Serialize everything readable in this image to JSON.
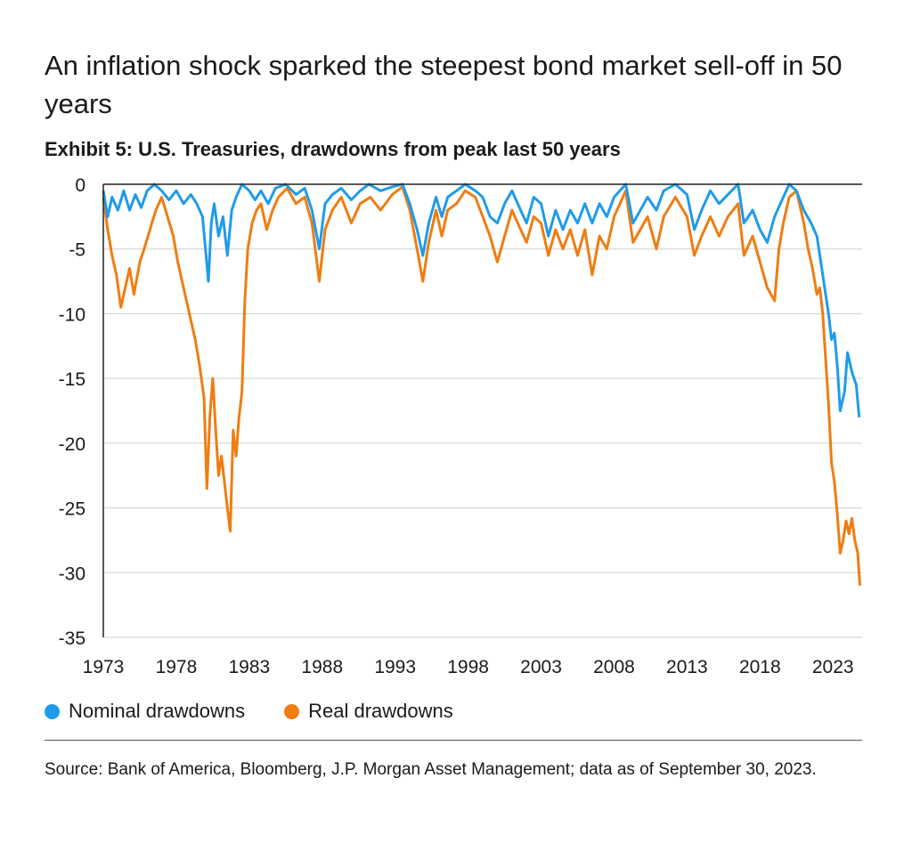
{
  "header": {
    "title": "An inflation shock sparked the steepest bond market sell-off in 50 years",
    "subtitle": "Exhibit 5: U.S. Treasuries, drawdowns from peak last 50 years"
  },
  "colors": {
    "nominal": "#1f9bea",
    "real": "#ef7d12",
    "grid": "#cfcfcf",
    "axis": "#222222"
  },
  "legend": [
    {
      "label": "Nominal drawdowns",
      "color": "#1f9bea"
    },
    {
      "label": "Real drawdowns",
      "color": "#ef7d12"
    }
  ],
  "footer": {
    "source": "Source: Bank of America, Bloomberg, J.P. Morgan Asset Management; data as of September 30, 2023."
  },
  "chart_data": {
    "type": "line",
    "title": "Exhibit 5: U.S. Treasuries, drawdowns from peak last 50 years",
    "xlabel": "",
    "ylabel": "",
    "xlim": [
      1973,
      2025
    ],
    "ylim": [
      -35,
      0
    ],
    "x_ticks": [
      1973,
      1978,
      1983,
      1988,
      1993,
      1998,
      2003,
      2008,
      2013,
      2018,
      2023
    ],
    "y_ticks": [
      0,
      -5,
      -10,
      -15,
      -20,
      -25,
      -30,
      -35
    ],
    "grid": true,
    "legend_position": "bottom-left",
    "series": [
      {
        "name": "Nominal drawdowns",
        "color": "#1f9bea",
        "points": [
          [
            1973.0,
            -0.5
          ],
          [
            1973.3,
            -2.5
          ],
          [
            1973.6,
            -1.0
          ],
          [
            1974.0,
            -2.0
          ],
          [
            1974.4,
            -0.5
          ],
          [
            1974.8,
            -2.0
          ],
          [
            1975.2,
            -0.8
          ],
          [
            1975.6,
            -1.8
          ],
          [
            1976.0,
            -0.5
          ],
          [
            1976.5,
            0
          ],
          [
            1977.0,
            -0.5
          ],
          [
            1977.5,
            -1.2
          ],
          [
            1978.0,
            -0.5
          ],
          [
            1978.5,
            -1.5
          ],
          [
            1979.0,
            -0.8
          ],
          [
            1979.4,
            -1.5
          ],
          [
            1979.8,
            -2.5
          ],
          [
            1980.0,
            -5.0
          ],
          [
            1980.2,
            -7.5
          ],
          [
            1980.4,
            -3.0
          ],
          [
            1980.6,
            -1.5
          ],
          [
            1980.9,
            -4.0
          ],
          [
            1981.2,
            -2.5
          ],
          [
            1981.5,
            -5.5
          ],
          [
            1981.8,
            -2.0
          ],
          [
            1982.1,
            -1.0
          ],
          [
            1982.5,
            0
          ],
          [
            1983.0,
            -0.5
          ],
          [
            1983.4,
            -1.2
          ],
          [
            1983.8,
            -0.5
          ],
          [
            1984.3,
            -1.5
          ],
          [
            1984.8,
            -0.3
          ],
          [
            1985.5,
            0
          ],
          [
            1986.2,
            -0.8
          ],
          [
            1986.8,
            -0.3
          ],
          [
            1987.3,
            -2.0
          ],
          [
            1987.8,
            -5.0
          ],
          [
            1988.2,
            -1.5
          ],
          [
            1988.7,
            -0.8
          ],
          [
            1989.3,
            -0.3
          ],
          [
            1990.0,
            -1.2
          ],
          [
            1990.6,
            -0.5
          ],
          [
            1991.2,
            0
          ],
          [
            1992.0,
            -0.5
          ],
          [
            1992.8,
            -0.2
          ],
          [
            1993.5,
            0
          ],
          [
            1994.0,
            -1.5
          ],
          [
            1994.5,
            -3.5
          ],
          [
            1994.9,
            -5.5
          ],
          [
            1995.3,
            -3.0
          ],
          [
            1995.8,
            -1.0
          ],
          [
            1996.2,
            -2.5
          ],
          [
            1996.6,
            -1.0
          ],
          [
            1997.2,
            -0.5
          ],
          [
            1997.8,
            0
          ],
          [
            1998.5,
            -0.5
          ],
          [
            1999.0,
            -1.0
          ],
          [
            1999.5,
            -2.5
          ],
          [
            2000.0,
            -3.0
          ],
          [
            2000.5,
            -1.5
          ],
          [
            2001.0,
            -0.5
          ],
          [
            2001.6,
            -2.0
          ],
          [
            2002.0,
            -3.0
          ],
          [
            2002.5,
            -1.0
          ],
          [
            2003.0,
            -1.5
          ],
          [
            2003.5,
            -4.0
          ],
          [
            2004.0,
            -2.0
          ],
          [
            2004.5,
            -3.5
          ],
          [
            2005.0,
            -2.0
          ],
          [
            2005.5,
            -3.0
          ],
          [
            2006.0,
            -1.5
          ],
          [
            2006.5,
            -3.0
          ],
          [
            2007.0,
            -1.5
          ],
          [
            2007.5,
            -2.5
          ],
          [
            2008.0,
            -1.0
          ],
          [
            2008.8,
            0
          ],
          [
            2009.3,
            -3.0
          ],
          [
            2009.8,
            -2.0
          ],
          [
            2010.3,
            -1.0
          ],
          [
            2010.9,
            -2.0
          ],
          [
            2011.4,
            -0.5
          ],
          [
            2012.2,
            0
          ],
          [
            2013.0,
            -0.8
          ],
          [
            2013.5,
            -3.5
          ],
          [
            2014.0,
            -2.0
          ],
          [
            2014.6,
            -0.5
          ],
          [
            2015.2,
            -1.5
          ],
          [
            2015.8,
            -0.8
          ],
          [
            2016.5,
            0
          ],
          [
            2016.9,
            -3.0
          ],
          [
            2017.5,
            -2.0
          ],
          [
            2018.0,
            -3.5
          ],
          [
            2018.5,
            -4.5
          ],
          [
            2019.0,
            -2.5
          ],
          [
            2019.6,
            -1.0
          ],
          [
            2020.0,
            0
          ],
          [
            2020.5,
            -0.5
          ],
          [
            2021.0,
            -2.0
          ],
          [
            2021.5,
            -3.0
          ],
          [
            2021.9,
            -4.0
          ],
          [
            2022.1,
            -5.5
          ],
          [
            2022.3,
            -7.0
          ],
          [
            2022.5,
            -8.5
          ],
          [
            2022.7,
            -10.0
          ],
          [
            2022.9,
            -12.0
          ],
          [
            2023.1,
            -11.5
          ],
          [
            2023.3,
            -14.0
          ],
          [
            2023.5,
            -17.5
          ],
          [
            2023.8,
            -16.0
          ],
          [
            2024.0,
            -13.0
          ],
          [
            2024.3,
            -14.5
          ],
          [
            2024.6,
            -15.5
          ],
          [
            2024.8,
            -18.0
          ]
        ]
      },
      {
        "name": "Real drawdowns",
        "color": "#ef7d12",
        "points": [
          [
            1973.0,
            -1.0
          ],
          [
            1973.3,
            -3.5
          ],
          [
            1973.6,
            -5.5
          ],
          [
            1973.9,
            -7.0
          ],
          [
            1974.2,
            -9.5
          ],
          [
            1974.5,
            -8.0
          ],
          [
            1974.8,
            -6.5
          ],
          [
            1975.1,
            -8.5
          ],
          [
            1975.5,
            -6.0
          ],
          [
            1975.8,
            -5.0
          ],
          [
            1976.2,
            -3.5
          ],
          [
            1976.6,
            -2.0
          ],
          [
            1977.0,
            -1.0
          ],
          [
            1977.4,
            -2.5
          ],
          [
            1977.8,
            -4.0
          ],
          [
            1978.1,
            -6.0
          ],
          [
            1978.4,
            -7.5
          ],
          [
            1978.7,
            -9.0
          ],
          [
            1979.0,
            -10.5
          ],
          [
            1979.3,
            -12.0
          ],
          [
            1979.6,
            -14.0
          ],
          [
            1979.9,
            -16.5
          ],
          [
            1980.1,
            -23.5
          ],
          [
            1980.3,
            -18.0
          ],
          [
            1980.5,
            -15.0
          ],
          [
            1980.7,
            -19.0
          ],
          [
            1980.9,
            -22.5
          ],
          [
            1981.1,
            -21.0
          ],
          [
            1981.3,
            -23.0
          ],
          [
            1981.5,
            -25.0
          ],
          [
            1981.7,
            -26.8
          ],
          [
            1981.9,
            -19.0
          ],
          [
            1982.1,
            -21.0
          ],
          [
            1982.3,
            -18.0
          ],
          [
            1982.5,
            -16.0
          ],
          [
            1982.7,
            -9.0
          ],
          [
            1982.9,
            -5.0
          ],
          [
            1983.2,
            -3.0
          ],
          [
            1983.5,
            -2.0
          ],
          [
            1983.8,
            -1.5
          ],
          [
            1984.2,
            -3.5
          ],
          [
            1984.6,
            -2.0
          ],
          [
            1985.0,
            -1.0
          ],
          [
            1985.6,
            -0.3
          ],
          [
            1986.2,
            -1.5
          ],
          [
            1986.8,
            -1.0
          ],
          [
            1987.3,
            -3.0
          ],
          [
            1987.8,
            -7.5
          ],
          [
            1988.2,
            -3.5
          ],
          [
            1988.7,
            -2.0
          ],
          [
            1989.3,
            -1.0
          ],
          [
            1990.0,
            -3.0
          ],
          [
            1990.6,
            -1.5
          ],
          [
            1991.3,
            -1.0
          ],
          [
            1992.0,
            -2.0
          ],
          [
            1992.8,
            -0.8
          ],
          [
            1993.5,
            -0.2
          ],
          [
            1994.0,
            -2.0
          ],
          [
            1994.5,
            -5.0
          ],
          [
            1994.9,
            -7.5
          ],
          [
            1995.3,
            -4.5
          ],
          [
            1995.8,
            -2.0
          ],
          [
            1996.2,
            -4.0
          ],
          [
            1996.6,
            -2.0
          ],
          [
            1997.2,
            -1.5
          ],
          [
            1997.8,
            -0.5
          ],
          [
            1998.5,
            -1.0
          ],
          [
            1999.0,
            -2.5
          ],
          [
            1999.5,
            -4.0
          ],
          [
            2000.0,
            -6.0
          ],
          [
            2000.5,
            -4.0
          ],
          [
            2001.0,
            -2.0
          ],
          [
            2001.6,
            -3.5
          ],
          [
            2002.0,
            -4.5
          ],
          [
            2002.5,
            -2.5
          ],
          [
            2003.0,
            -3.0
          ],
          [
            2003.5,
            -5.5
          ],
          [
            2004.0,
            -3.5
          ],
          [
            2004.5,
            -5.0
          ],
          [
            2005.0,
            -3.5
          ],
          [
            2005.5,
            -5.5
          ],
          [
            2006.0,
            -3.5
          ],
          [
            2006.5,
            -7.0
          ],
          [
            2007.0,
            -4.0
          ],
          [
            2007.5,
            -5.0
          ],
          [
            2008.0,
            -2.5
          ],
          [
            2008.8,
            -0.5
          ],
          [
            2009.3,
            -4.5
          ],
          [
            2009.8,
            -3.5
          ],
          [
            2010.3,
            -2.5
          ],
          [
            2010.9,
            -5.0
          ],
          [
            2011.4,
            -2.5
          ],
          [
            2012.2,
            -1.0
          ],
          [
            2013.0,
            -2.5
          ],
          [
            2013.5,
            -5.5
          ],
          [
            2014.0,
            -4.0
          ],
          [
            2014.6,
            -2.5
          ],
          [
            2015.2,
            -4.0
          ],
          [
            2015.8,
            -2.5
          ],
          [
            2016.5,
            -1.5
          ],
          [
            2016.9,
            -5.5
          ],
          [
            2017.5,
            -4.0
          ],
          [
            2018.0,
            -6.0
          ],
          [
            2018.5,
            -8.0
          ],
          [
            2019.0,
            -9.0
          ],
          [
            2019.3,
            -5.0
          ],
          [
            2019.6,
            -3.0
          ],
          [
            2020.0,
            -1.0
          ],
          [
            2020.5,
            -0.5
          ],
          [
            2021.0,
            -3.0
          ],
          [
            2021.3,
            -5.0
          ],
          [
            2021.6,
            -6.5
          ],
          [
            2021.9,
            -8.5
          ],
          [
            2022.1,
            -8.0
          ],
          [
            2022.3,
            -10.0
          ],
          [
            2022.5,
            -13.5
          ],
          [
            2022.7,
            -17.0
          ],
          [
            2022.9,
            -21.5
          ],
          [
            2023.1,
            -23.0
          ],
          [
            2023.3,
            -25.5
          ],
          [
            2023.5,
            -28.5
          ],
          [
            2023.7,
            -27.5
          ],
          [
            2023.9,
            -26.0
          ],
          [
            2024.1,
            -27.0
          ],
          [
            2024.3,
            -25.8
          ],
          [
            2024.5,
            -27.5
          ],
          [
            2024.7,
            -28.5
          ],
          [
            2024.85,
            -31.0
          ]
        ]
      }
    ]
  }
}
